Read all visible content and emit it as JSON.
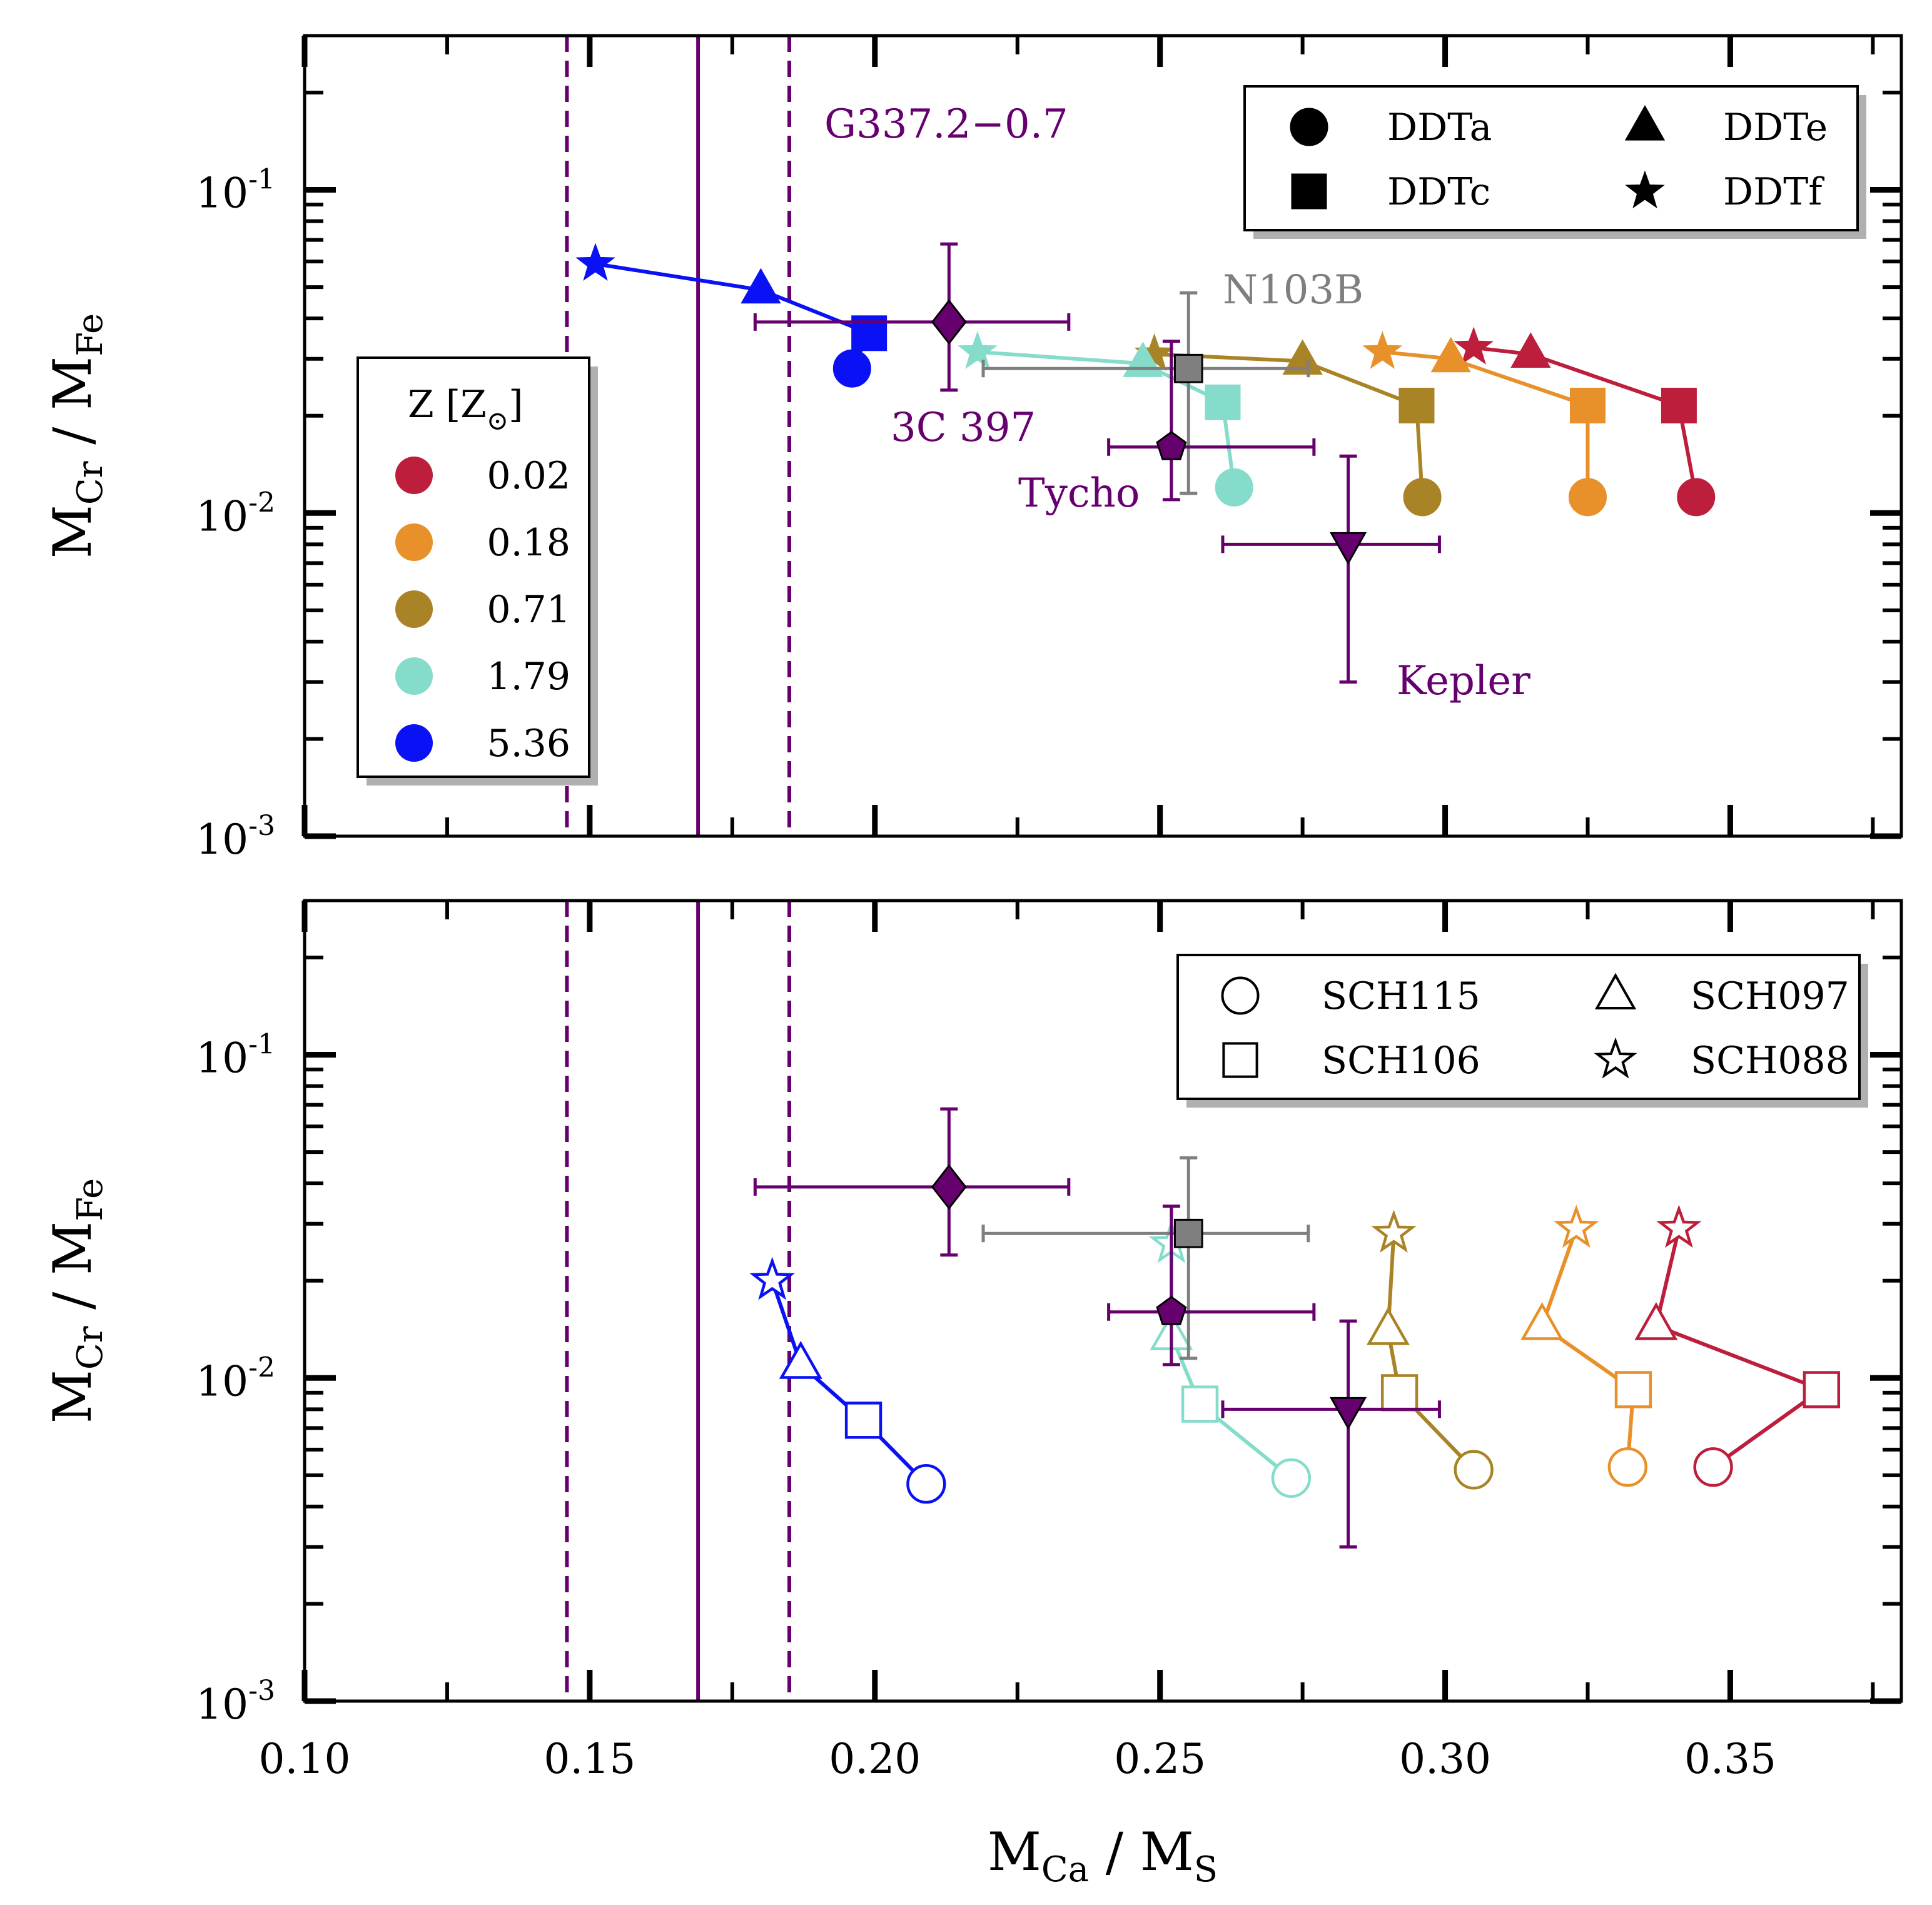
{
  "chart_data": {
    "type": "scatter",
    "x_axis": {
      "label_main": "M",
      "label_sub": "Ca",
      "label_sep": " / ",
      "label_main2": "M",
      "label_sub2": "S",
      "range": [
        0.1,
        0.38
      ],
      "ticks": [
        0.1,
        0.15,
        0.2,
        0.25,
        0.3,
        0.35
      ],
      "tick_labels": [
        "0.10",
        "0.15",
        "0.20",
        "0.25",
        "0.30",
        "0.35"
      ]
    },
    "y_axis": {
      "label_main": "M",
      "label_sub": "Cr",
      "label_sep": " / ",
      "label_main2": "M",
      "label_sub2": "Fe",
      "scale": "log",
      "range": [
        0.001,
        0.3
      ],
      "ticks": [
        0.001,
        0.01,
        0.1
      ],
      "tick_labels": [
        {
          "base": "10",
          "exp": "-3"
        },
        {
          "base": "10",
          "exp": "-2"
        },
        {
          "base": "10",
          "exp": "-1"
        }
      ]
    },
    "colors": {
      "purple": "#66006e",
      "gray": "#7f7f7f",
      "z_0.02": "#bd1e3c",
      "z_0.18": "#e8902a",
      "z_0.71": "#a98427",
      "z_1.79": "#86dccb",
      "z_5.36": "#0a12f5"
    },
    "metallicity_legend": {
      "title_main": "Z [Z",
      "title_sub": "⊙",
      "title_close": "]",
      "entries": [
        {
          "label": "0.02",
          "color_key": "z_0.02"
        },
        {
          "label": "0.18",
          "color_key": "z_0.18"
        },
        {
          "label": "0.71",
          "color_key": "z_0.71"
        },
        {
          "label": "1.79",
          "color_key": "z_1.79"
        },
        {
          "label": "5.36",
          "color_key": "z_5.36"
        }
      ]
    },
    "g337": {
      "label": "G337.2−0.7",
      "value": 0.169,
      "low": 0.146,
      "high": 0.185
    },
    "observations": [
      {
        "name": "3C 397",
        "marker": "diamond",
        "color_key": "purple",
        "x": 0.213,
        "xerr": [
          0.179,
          0.234
        ],
        "y": 0.039,
        "yerr": [
          0.024,
          0.068
        ]
      },
      {
        "name": "N103B",
        "marker": "square",
        "color_key": "gray",
        "x": 0.255,
        "xerr": [
          0.219,
          0.276
        ],
        "y": 0.028,
        "yerr": [
          0.0115,
          0.048
        ]
      },
      {
        "name": "Tycho",
        "marker": "pentagon",
        "color_key": "purple",
        "x": 0.252,
        "xerr": [
          0.241,
          0.277
        ],
        "y": 0.016,
        "yerr": [
          0.011,
          0.034
        ]
      },
      {
        "name": "Kepler",
        "marker": "triangle-down",
        "color_key": "purple",
        "x": 0.283,
        "xerr": [
          0.261,
          0.299
        ],
        "y": 0.008,
        "yerr": [
          0.003,
          0.015
        ]
      }
    ],
    "panels": [
      {
        "id": "top",
        "legend": [
          {
            "label": "DDTa",
            "marker": "circle"
          },
          {
            "label": "DDTe",
            "marker": "triangle"
          },
          {
            "label": "DDTc",
            "marker": "square"
          },
          {
            "label": "DDTf",
            "marker": "star"
          }
        ],
        "series": [
          {
            "z": "0.02",
            "color_key": "z_0.02",
            "filled": true,
            "points": [
              {
                "model": "DDTf",
                "marker": "star",
                "x": 0.305,
                "y": 0.0325
              },
              {
                "model": "DDTe",
                "marker": "triangle",
                "x": 0.315,
                "y": 0.031
              },
              {
                "model": "DDTc",
                "marker": "square",
                "x": 0.341,
                "y": 0.0215
              },
              {
                "model": "DDTa",
                "marker": "circle",
                "x": 0.344,
                "y": 0.0112
              }
            ]
          },
          {
            "z": "0.18",
            "color_key": "z_0.18",
            "filled": true,
            "points": [
              {
                "model": "DDTf",
                "marker": "star",
                "x": 0.289,
                "y": 0.0315
              },
              {
                "model": "DDTe",
                "marker": "triangle",
                "x": 0.301,
                "y": 0.03
              },
              {
                "model": "DDTc",
                "marker": "square",
                "x": 0.325,
                "y": 0.0215
              },
              {
                "model": "DDTa",
                "marker": "circle",
                "x": 0.325,
                "y": 0.0112
              }
            ]
          },
          {
            "z": "0.71",
            "color_key": "z_0.71",
            "filled": true,
            "points": [
              {
                "model": "DDTf",
                "marker": "star",
                "x": 0.249,
                "y": 0.031
              },
              {
                "model": "DDTe",
                "marker": "triangle",
                "x": 0.275,
                "y": 0.0295
              },
              {
                "model": "DDTc",
                "marker": "square",
                "x": 0.295,
                "y": 0.0215
              },
              {
                "model": "DDTa",
                "marker": "circle",
                "x": 0.296,
                "y": 0.0112
              }
            ]
          },
          {
            "z": "1.79",
            "color_key": "z_1.79",
            "filled": true,
            "points": [
              {
                "model": "DDTf",
                "marker": "star",
                "x": 0.218,
                "y": 0.0315
              },
              {
                "model": "DDTe",
                "marker": "triangle",
                "x": 0.247,
                "y": 0.029
              },
              {
                "model": "DDTc",
                "marker": "square",
                "x": 0.261,
                "y": 0.022
              },
              {
                "model": "DDTa",
                "marker": "circle",
                "x": 0.263,
                "y": 0.012
              }
            ]
          },
          {
            "z": "5.36",
            "color_key": "z_5.36",
            "filled": true,
            "points": [
              {
                "model": "DDTf",
                "marker": "star",
                "x": 0.151,
                "y": 0.059
              },
              {
                "model": "DDTe",
                "marker": "triangle",
                "x": 0.18,
                "y": 0.049
              },
              {
                "model": "DDTc",
                "marker": "square",
                "x": 0.199,
                "y": 0.036
              },
              {
                "model": "DDTa",
                "marker": "circle",
                "x": 0.196,
                "y": 0.028
              }
            ]
          }
        ]
      },
      {
        "id": "bottom",
        "legend": [
          {
            "label": "SCH115",
            "marker": "circle"
          },
          {
            "label": "SCH097",
            "marker": "triangle"
          },
          {
            "label": "SCH106",
            "marker": "square"
          },
          {
            "label": "SCH088",
            "marker": "star"
          }
        ],
        "series": [
          {
            "z": "0.02",
            "color_key": "z_0.02",
            "filled": false,
            "points": [
              {
                "model": "SCH088",
                "marker": "star",
                "x": 0.341,
                "y": 0.029
              },
              {
                "model": "SCH097",
                "marker": "triangle",
                "x": 0.337,
                "y": 0.0145
              },
              {
                "model": "SCH106",
                "marker": "square",
                "x": 0.366,
                "y": 0.0092
              },
              {
                "model": "SCH115",
                "marker": "circle",
                "x": 0.347,
                "y": 0.0053
              }
            ]
          },
          {
            "z": "0.18",
            "color_key": "z_0.18",
            "filled": false,
            "points": [
              {
                "model": "SCH088",
                "marker": "star",
                "x": 0.323,
                "y": 0.029
              },
              {
                "model": "SCH097",
                "marker": "triangle",
                "x": 0.317,
                "y": 0.0145
              },
              {
                "model": "SCH106",
                "marker": "square",
                "x": 0.333,
                "y": 0.0092
              },
              {
                "model": "SCH115",
                "marker": "circle",
                "x": 0.332,
                "y": 0.0053
              }
            ]
          },
          {
            "z": "0.71",
            "color_key": "z_0.71",
            "filled": false,
            "points": [
              {
                "model": "SCH088",
                "marker": "star",
                "x": 0.291,
                "y": 0.028
              },
              {
                "model": "SCH097",
                "marker": "triangle",
                "x": 0.29,
                "y": 0.014
              },
              {
                "model": "SCH106",
                "marker": "square",
                "x": 0.292,
                "y": 0.009
              },
              {
                "model": "SCH115",
                "marker": "circle",
                "x": 0.305,
                "y": 0.0052
              }
            ]
          },
          {
            "z": "1.79",
            "color_key": "z_1.79",
            "filled": false,
            "points": [
              {
                "model": "SCH088",
                "marker": "star",
                "x": 0.252,
                "y": 0.026
              },
              {
                "model": "SCH097",
                "marker": "triangle",
                "x": 0.252,
                "y": 0.0135
              },
              {
                "model": "SCH106",
                "marker": "square",
                "x": 0.257,
                "y": 0.0083
              },
              {
                "model": "SCH115",
                "marker": "circle",
                "x": 0.273,
                "y": 0.0049
              }
            ]
          },
          {
            "z": "5.36",
            "color_key": "z_5.36",
            "filled": false,
            "points": [
              {
                "model": "SCH088",
                "marker": "star",
                "x": 0.182,
                "y": 0.02
              },
              {
                "model": "SCH097",
                "marker": "triangle",
                "x": 0.187,
                "y": 0.011
              },
              {
                "model": "SCH106",
                "marker": "square",
                "x": 0.198,
                "y": 0.0074
              },
              {
                "model": "SCH115",
                "marker": "circle",
                "x": 0.209,
                "y": 0.0047
              }
            ]
          }
        ]
      }
    ]
  }
}
